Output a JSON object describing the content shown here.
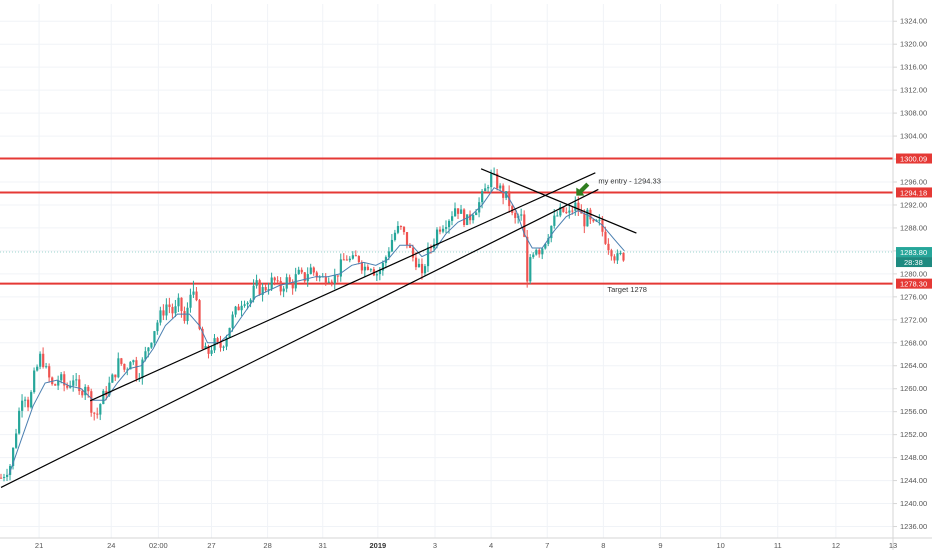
{
  "colors": {
    "up": "#26a69a",
    "down": "#ef5350",
    "level_line": "#e53935",
    "trendline": "#000000",
    "ma": "#4a7fb0",
    "arrow": "#2e7d1f",
    "grid": "#f0f3f7",
    "current_price_line": "#9ed6cf",
    "axis_border": "#d6d6d6"
  },
  "chart_data": {
    "type": "candlestick",
    "title": "",
    "xlabel": "",
    "ylabel": "",
    "ylim": [
      1234,
      1327
    ],
    "x_range": [
      -1,
      890
    ],
    "grid": true,
    "y_ticks": [
      "1236.00",
      "1240.00",
      "1244.00",
      "1248.00",
      "1252.00",
      "1256.00",
      "1260.00",
      "1264.00",
      "1268.00",
      "1272.00",
      "1276.00",
      "1280.00",
      "1284.00",
      "1288.00",
      "1292.00",
      "1296.00",
      "1300.00",
      "1304.00",
      "1308.00",
      "1312.00",
      "1316.00",
      "1320.00",
      "1324.00"
    ],
    "x_ticks": [
      {
        "label": "21",
        "x": 38,
        "bold": false
      },
      {
        "label": "24",
        "x": 110,
        "bold": false
      },
      {
        "label": "02:00",
        "x": 157,
        "bold": false
      },
      {
        "label": "27",
        "x": 210,
        "bold": false
      },
      {
        "label": "28",
        "x": 266,
        "bold": false
      },
      {
        "label": "31",
        "x": 321,
        "bold": false
      },
      {
        "label": "2019",
        "x": 376,
        "bold": true
      },
      {
        "label": "3",
        "x": 433,
        "bold": false
      },
      {
        "label": "4",
        "x": 489,
        "bold": false
      },
      {
        "label": "7",
        "x": 545,
        "bold": false
      },
      {
        "label": "8",
        "x": 601,
        "bold": false
      },
      {
        "label": "9",
        "x": 658,
        "bold": false
      },
      {
        "label": "10",
        "x": 718,
        "bold": false
      },
      {
        "label": "11",
        "x": 775,
        "bold": false
      },
      {
        "label": "12",
        "x": 833,
        "bold": false
      },
      {
        "label": "13",
        "x": 890,
        "bold": false
      }
    ],
    "price_path": [
      [
        0,
        1244.5
      ],
      [
        10,
        1247
      ],
      [
        16,
        1254
      ],
      [
        22,
        1260
      ],
      [
        28,
        1257
      ],
      [
        33,
        1262
      ],
      [
        40,
        1266
      ],
      [
        45,
        1263
      ],
      [
        52,
        1260
      ],
      [
        58,
        1262
      ],
      [
        65,
        1260
      ],
      [
        72,
        1262
      ],
      [
        78,
        1259
      ],
      [
        84,
        1261
      ],
      [
        90,
        1257
      ],
      [
        95,
        1255
      ],
      [
        100,
        1258
      ],
      [
        106,
        1260
      ],
      [
        112,
        1262
      ],
      [
        118,
        1265
      ],
      [
        124,
        1263
      ],
      [
        130,
        1266
      ],
      [
        136,
        1262
      ],
      [
        142,
        1265
      ],
      [
        148,
        1268
      ],
      [
        154,
        1271
      ],
      [
        160,
        1273
      ],
      [
        166,
        1275
      ],
      [
        172,
        1273
      ],
      [
        178,
        1275
      ],
      [
        184,
        1271
      ],
      [
        188,
        1276
      ],
      [
        192,
        1278
      ],
      [
        196,
        1273
      ],
      [
        200,
        1267
      ],
      [
        206,
        1266
      ],
      [
        212,
        1268
      ],
      [
        218,
        1267
      ],
      [
        224,
        1269
      ],
      [
        230,
        1272
      ],
      [
        236,
        1274
      ],
      [
        242,
        1276
      ],
      [
        248,
        1275
      ],
      [
        254,
        1278
      ],
      [
        260,
        1277
      ],
      [
        266,
        1278
      ],
      [
        272,
        1279
      ],
      [
        278,
        1277
      ],
      [
        284,
        1279
      ],
      [
        290,
        1278
      ],
      [
        296,
        1280
      ],
      [
        302,
        1279
      ],
      [
        308,
        1281
      ],
      [
        314,
        1280
      ],
      [
        320,
        1279
      ],
      [
        326,
        1280
      ],
      [
        332,
        1279
      ],
      [
        338,
        1281
      ],
      [
        344,
        1283
      ],
      [
        350,
        1282
      ],
      [
        356,
        1283
      ],
      [
        362,
        1281
      ],
      [
        368,
        1282
      ],
      [
        374,
        1280
      ],
      [
        380,
        1281
      ],
      [
        386,
        1284
      ],
      [
        392,
        1287
      ],
      [
        398,
        1288
      ],
      [
        404,
        1286
      ],
      [
        410,
        1283
      ],
      [
        416,
        1282
      ],
      [
        420,
        1279
      ],
      [
        424,
        1283
      ],
      [
        430,
        1285
      ],
      [
        436,
        1288
      ],
      [
        442,
        1289
      ],
      [
        448,
        1290
      ],
      [
        454,
        1292
      ],
      [
        460,
        1290
      ],
      [
        466,
        1289
      ],
      [
        470,
        1291
      ],
      [
        476,
        1292
      ],
      [
        482,
        1294
      ],
      [
        488,
        1297
      ],
      [
        494,
        1296
      ],
      [
        500,
        1294
      ],
      [
        506,
        1293
      ],
      [
        510,
        1290
      ],
      [
        514,
        1289
      ],
      [
        518,
        1291
      ],
      [
        522,
        1286
      ],
      [
        525,
        1278
      ],
      [
        528,
        1283
      ],
      [
        533,
        1285
      ],
      [
        538,
        1284
      ],
      [
        543,
        1286
      ],
      [
        548,
        1288
      ],
      [
        554,
        1290
      ],
      [
        560,
        1291
      ],
      [
        566,
        1290
      ],
      [
        572,
        1292
      ],
      [
        577,
        1291
      ],
      [
        581,
        1289
      ],
      [
        585,
        1290
      ],
      [
        590,
        1288
      ],
      [
        596,
        1289
      ],
      [
        601,
        1287
      ],
      [
        606,
        1285
      ],
      [
        610,
        1284
      ],
      [
        614,
        1282.5
      ],
      [
        618,
        1283
      ],
      [
        622,
        1283.3
      ]
    ],
    "ma_path": [
      [
        8,
        1245
      ],
      [
        20,
        1251
      ],
      [
        32,
        1257
      ],
      [
        44,
        1261
      ],
      [
        56,
        1261.5
      ],
      [
        68,
        1260.5
      ],
      [
        80,
        1260
      ],
      [
        92,
        1258
      ],
      [
        104,
        1258
      ],
      [
        116,
        1261
      ],
      [
        128,
        1263.5
      ],
      [
        140,
        1264
      ],
      [
        152,
        1267
      ],
      [
        164,
        1271
      ],
      [
        176,
        1273
      ],
      [
        188,
        1273
      ],
      [
        198,
        1271
      ],
      [
        206,
        1268
      ],
      [
        218,
        1268
      ],
      [
        230,
        1270
      ],
      [
        242,
        1273
      ],
      [
        254,
        1276
      ],
      [
        266,
        1277
      ],
      [
        278,
        1278
      ],
      [
        290,
        1278.5
      ],
      [
        302,
        1279
      ],
      [
        314,
        1279.5
      ],
      [
        326,
        1279.5
      ],
      [
        338,
        1280
      ],
      [
        350,
        1281.5
      ],
      [
        362,
        1282
      ],
      [
        374,
        1281.5
      ],
      [
        386,
        1282.5
      ],
      [
        398,
        1285
      ],
      [
        410,
        1285
      ],
      [
        420,
        1283
      ],
      [
        432,
        1284
      ],
      [
        444,
        1287
      ],
      [
        456,
        1289
      ],
      [
        468,
        1290
      ],
      [
        480,
        1292
      ],
      [
        492,
        1295
      ],
      [
        504,
        1294
      ],
      [
        514,
        1291
      ],
      [
        522,
        1287
      ],
      [
        530,
        1284.5
      ],
      [
        540,
        1284.5
      ],
      [
        552,
        1287.5
      ],
      [
        564,
        1290
      ],
      [
        576,
        1291
      ],
      [
        588,
        1290
      ],
      [
        600,
        1288.5
      ],
      [
        612,
        1286
      ],
      [
        622,
        1284
      ]
    ],
    "horizontal_levels": [
      {
        "price": 1300.09,
        "label": "1300.09"
      },
      {
        "price": 1294.18,
        "label": "1294.18"
      },
      {
        "price": 1278.3,
        "label": "1278.30"
      }
    ],
    "trendlines": [
      {
        "name": "upper-support",
        "from": [
          89,
          1257.9
        ],
        "to": [
          593,
          1297.6
        ]
      },
      {
        "name": "lower-support",
        "from": [
          0,
          1242.8
        ],
        "to": [
          596,
          1294.7
        ]
      },
      {
        "name": "descending-resistance",
        "from": [
          479,
          1298.3
        ],
        "to": [
          634,
          1287.1
        ]
      }
    ],
    "current_price": {
      "value": 1283.8,
      "label": "1283.80",
      "timer": "28:38"
    },
    "annotations": [
      {
        "text": "my entry - 1294.33",
        "x": 596,
        "price": 1295.7
      },
      {
        "text": "Target 1278",
        "x": 605,
        "price": 1276.8
      }
    ],
    "arrow": {
      "x": 584,
      "price": 1295.2,
      "direction": "down-left"
    }
  }
}
